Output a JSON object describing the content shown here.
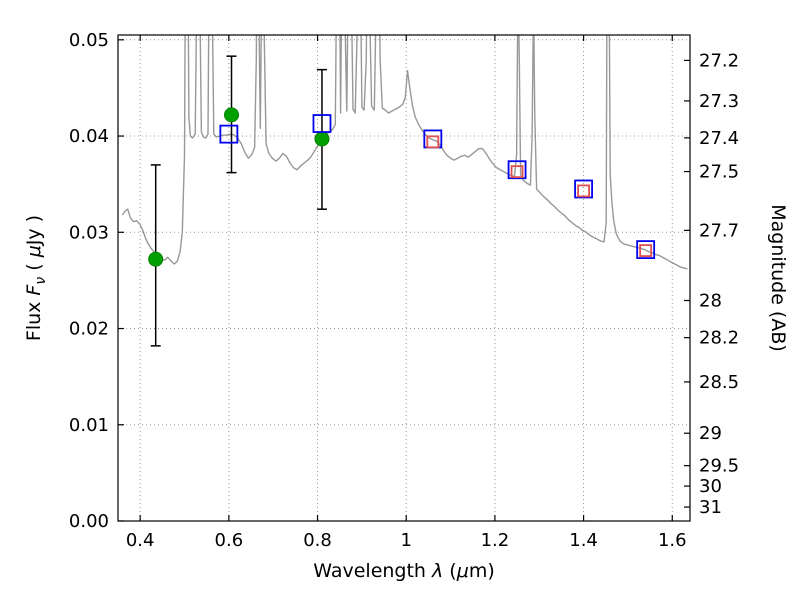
{
  "chart_data": {
    "type": "line",
    "title": "",
    "xlabel_parts": [
      {
        "t": "Wavelength  "
      },
      {
        "t": "λ",
        "i": true
      },
      {
        "t": " ("
      },
      {
        "t": "μ",
        "i": true
      },
      {
        "t": "m)"
      }
    ],
    "ylabel_left_parts": [
      {
        "t": "Flux  "
      },
      {
        "t": "F",
        "i": true
      },
      {
        "t": "ν",
        "i": true,
        "s": true
      },
      {
        "t": "  ( "
      },
      {
        "t": "μ",
        "i": true
      },
      {
        "t": "Jy )"
      }
    ],
    "ylabel_right": "Magnitude (AB)",
    "xlim": [
      0.35,
      1.64
    ],
    "ylim_flux": [
      0.0,
      0.0505
    ],
    "grid": {
      "show": true,
      "color": "#999999"
    },
    "x_ticks": [
      {
        "value": 0.4,
        "label": "0.4"
      },
      {
        "value": 0.6,
        "label": "0.6"
      },
      {
        "value": 0.8,
        "label": "0.8"
      },
      {
        "value": 1.0,
        "label": "1"
      },
      {
        "value": 1.2,
        "label": "1.2"
      },
      {
        "value": 1.4,
        "label": "1.4"
      },
      {
        "value": 1.6,
        "label": "1.6"
      }
    ],
    "y_ticks_left": [
      {
        "value": 0.0,
        "label": "0.00"
      },
      {
        "value": 0.01,
        "label": "0.01"
      },
      {
        "value": 0.02,
        "label": "0.02"
      },
      {
        "value": 0.03,
        "label": "0.03"
      },
      {
        "value": 0.04,
        "label": "0.04"
      },
      {
        "value": 0.05,
        "label": "0.05"
      }
    ],
    "y_ticks_right": [
      {
        "flux": 0.04786,
        "label": "27.2"
      },
      {
        "flux": 0.04365,
        "label": "27.3"
      },
      {
        "flux": 0.03981,
        "label": "27.4"
      },
      {
        "flux": 0.03631,
        "label": "27.5"
      },
      {
        "flux": 0.0302,
        "label": "27.7"
      },
      {
        "flux": 0.02291,
        "label": "28"
      },
      {
        "flux": 0.01905,
        "label": "28.2"
      },
      {
        "flux": 0.01445,
        "label": "28.5"
      },
      {
        "flux": 0.00912,
        "label": "29"
      },
      {
        "flux": 0.00575,
        "label": "29.5"
      },
      {
        "flux": 0.00363,
        "label": "30"
      },
      {
        "flux": 0.00145,
        "label": "31"
      }
    ],
    "spectrum": {
      "name": "model-spectrum",
      "color": "#989898",
      "linewidth": 1.4,
      "points": [
        [
          0.36,
          0.0318
        ],
        [
          0.366,
          0.0322
        ],
        [
          0.372,
          0.0324
        ],
        [
          0.378,
          0.0315
        ],
        [
          0.385,
          0.0311
        ],
        [
          0.392,
          0.0312
        ],
        [
          0.4,
          0.0308
        ],
        [
          0.406,
          0.0302
        ],
        [
          0.412,
          0.0294
        ],
        [
          0.418,
          0.0288
        ],
        [
          0.425,
          0.0283
        ],
        [
          0.432,
          0.0279
        ],
        [
          0.44,
          0.0275
        ],
        [
          0.448,
          0.0272
        ],
        [
          0.455,
          0.0271
        ],
        [
          0.462,
          0.0274
        ],
        [
          0.47,
          0.027
        ],
        [
          0.477,
          0.0267
        ],
        [
          0.484,
          0.027
        ],
        [
          0.49,
          0.028
        ],
        [
          0.495,
          0.03
        ],
        [
          0.5,
          0.038
        ],
        [
          0.503,
          0.065
        ],
        [
          0.505,
          0.072
        ],
        [
          0.507,
          0.065
        ],
        [
          0.51,
          0.042
        ],
        [
          0.513,
          0.04
        ],
        [
          0.518,
          0.0398
        ],
        [
          0.524,
          0.0402
        ],
        [
          0.528,
          0.056
        ],
        [
          0.531,
          0.072
        ],
        [
          0.534,
          0.056
        ],
        [
          0.538,
          0.0404
        ],
        [
          0.543,
          0.0399
        ],
        [
          0.548,
          0.0398
        ],
        [
          0.553,
          0.0402
        ],
        [
          0.556,
          0.06
        ],
        [
          0.559,
          0.072
        ],
        [
          0.562,
          0.056
        ],
        [
          0.566,
          0.0402
        ],
        [
          0.572,
          0.0399
        ],
        [
          0.58,
          0.04
        ],
        [
          0.588,
          0.0401
        ],
        [
          0.596,
          0.0401
        ],
        [
          0.604,
          0.0402
        ],
        [
          0.612,
          0.0401
        ],
        [
          0.62,
          0.0398
        ],
        [
          0.628,
          0.0392
        ],
        [
          0.636,
          0.0383
        ],
        [
          0.644,
          0.0377
        ],
        [
          0.652,
          0.0381
        ],
        [
          0.658,
          0.0388
        ],
        [
          0.662,
          0.048
        ],
        [
          0.665,
          0.072
        ],
        [
          0.668,
          0.052
        ],
        [
          0.671,
          0.0408
        ],
        [
          0.674,
          0.056
        ],
        [
          0.677,
          0.072
        ],
        [
          0.68,
          0.05
        ],
        [
          0.684,
          0.0392
        ],
        [
          0.69,
          0.0382
        ],
        [
          0.698,
          0.0377
        ],
        [
          0.706,
          0.0374
        ],
        [
          0.714,
          0.0377
        ],
        [
          0.722,
          0.0382
        ],
        [
          0.73,
          0.0379
        ],
        [
          0.738,
          0.0372
        ],
        [
          0.746,
          0.0367
        ],
        [
          0.754,
          0.0365
        ],
        [
          0.762,
          0.0369
        ],
        [
          0.77,
          0.0372
        ],
        [
          0.778,
          0.0375
        ],
        [
          0.786,
          0.0379
        ],
        [
          0.794,
          0.0385
        ],
        [
          0.802,
          0.0391
        ],
        [
          0.81,
          0.0396
        ],
        [
          0.818,
          0.0401
        ],
        [
          0.826,
          0.0404
        ],
        [
          0.834,
          0.0407
        ],
        [
          0.84,
          0.0412
        ],
        [
          0.843,
          0.056
        ],
        [
          0.846,
          0.072
        ],
        [
          0.849,
          0.06
        ],
        [
          0.852,
          0.0424
        ],
        [
          0.856,
          0.065
        ],
        [
          0.859,
          0.072
        ],
        [
          0.862,
          0.052
        ],
        [
          0.866,
          0.0426
        ],
        [
          0.87,
          0.06
        ],
        [
          0.873,
          0.072
        ],
        [
          0.876,
          0.056
        ],
        [
          0.88,
          0.0428
        ],
        [
          0.885,
          0.0424
        ],
        [
          0.89,
          0.052
        ],
        [
          0.893,
          0.072
        ],
        [
          0.896,
          0.06
        ],
        [
          0.9,
          0.043
        ],
        [
          0.905,
          0.0427
        ],
        [
          0.91,
          0.048
        ],
        [
          0.914,
          0.072
        ],
        [
          0.918,
          0.052
        ],
        [
          0.922,
          0.0431
        ],
        [
          0.928,
          0.0427
        ],
        [
          0.933,
          0.056
        ],
        [
          0.937,
          0.072
        ],
        [
          0.941,
          0.048
        ],
        [
          0.946,
          0.0429
        ],
        [
          0.953,
          0.0427
        ],
        [
          0.96,
          0.0424
        ],
        [
          0.968,
          0.0426
        ],
        [
          0.976,
          0.0428
        ],
        [
          0.984,
          0.043
        ],
        [
          0.992,
          0.0433
        ],
        [
          0.998,
          0.044
        ],
        [
          1.003,
          0.0468
        ],
        [
          1.008,
          0.045
        ],
        [
          1.014,
          0.0432
        ],
        [
          1.02,
          0.042
        ],
        [
          1.028,
          0.0412
        ],
        [
          1.036,
          0.0406
        ],
        [
          1.044,
          0.0401
        ],
        [
          1.052,
          0.0398
        ],
        [
          1.06,
          0.0396
        ],
        [
          1.068,
          0.0395
        ],
        [
          1.076,
          0.0391
        ],
        [
          1.084,
          0.0385
        ],
        [
          1.092,
          0.038
        ],
        [
          1.1,
          0.0377
        ],
        [
          1.108,
          0.0375
        ],
        [
          1.116,
          0.0377
        ],
        [
          1.124,
          0.0379
        ],
        [
          1.132,
          0.038
        ],
        [
          1.14,
          0.0378
        ],
        [
          1.148,
          0.0381
        ],
        [
          1.156,
          0.0384
        ],
        [
          1.164,
          0.0387
        ],
        [
          1.172,
          0.0387
        ],
        [
          1.18,
          0.0382
        ],
        [
          1.188,
          0.0376
        ],
        [
          1.196,
          0.0371
        ],
        [
          1.204,
          0.0367
        ],
        [
          1.212,
          0.0365
        ],
        [
          1.22,
          0.0363
        ],
        [
          1.228,
          0.0361
        ],
        [
          1.236,
          0.0359
        ],
        [
          1.244,
          0.0358
        ],
        [
          1.249,
          0.038
        ],
        [
          1.252,
          0.056
        ],
        [
          1.255,
          0.048
        ],
        [
          1.258,
          0.036
        ],
        [
          1.264,
          0.0354
        ],
        [
          1.272,
          0.0351
        ],
        [
          1.28,
          0.0349
        ],
        [
          1.284,
          0.04
        ],
        [
          1.287,
          0.054
        ],
        [
          1.29,
          0.042
        ],
        [
          1.294,
          0.0345
        ],
        [
          1.302,
          0.0341
        ],
        [
          1.31,
          0.0337
        ],
        [
          1.318,
          0.0334
        ],
        [
          1.326,
          0.033
        ],
        [
          1.334,
          0.0327
        ],
        [
          1.342,
          0.0323
        ],
        [
          1.35,
          0.032
        ],
        [
          1.358,
          0.0317
        ],
        [
          1.366,
          0.0313
        ],
        [
          1.374,
          0.031
        ],
        [
          1.382,
          0.0307
        ],
        [
          1.39,
          0.0305
        ],
        [
          1.398,
          0.0302
        ],
        [
          1.406,
          0.03
        ],
        [
          1.414,
          0.0297
        ],
        [
          1.422,
          0.0295
        ],
        [
          1.43,
          0.0293
        ],
        [
          1.438,
          0.0291
        ],
        [
          1.446,
          0.029
        ],
        [
          1.451,
          0.031
        ],
        [
          1.454,
          0.072
        ],
        [
          1.457,
          0.06
        ],
        [
          1.46,
          0.036
        ],
        [
          1.464,
          0.033
        ],
        [
          1.468,
          0.0312
        ],
        [
          1.474,
          0.0298
        ],
        [
          1.482,
          0.0291
        ],
        [
          1.49,
          0.0288
        ],
        [
          1.498,
          0.0287
        ],
        [
          1.506,
          0.0286
        ],
        [
          1.514,
          0.0285
        ],
        [
          1.522,
          0.0284
        ],
        [
          1.53,
          0.0283
        ],
        [
          1.538,
          0.0282
        ],
        [
          1.546,
          0.028
        ],
        [
          1.554,
          0.0279
        ],
        [
          1.562,
          0.0277
        ],
        [
          1.57,
          0.0276
        ],
        [
          1.578,
          0.0274
        ],
        [
          1.586,
          0.0272
        ],
        [
          1.594,
          0.027
        ],
        [
          1.602,
          0.0268
        ],
        [
          1.61,
          0.0266
        ],
        [
          1.618,
          0.0264
        ],
        [
          1.626,
          0.0263
        ],
        [
          1.634,
          0.0262
        ]
      ]
    },
    "observed_points": {
      "name": "observed-photometry-circles",
      "marker": "circle",
      "color": "#00a000",
      "edge_color": "#008000",
      "error_color": "#000000",
      "points": [
        {
          "x": 0.435,
          "flux": 0.0272,
          "err_plus": 0.0098,
          "err_minus": 0.009
        },
        {
          "x": 0.606,
          "flux": 0.0422,
          "err_plus": 0.0061,
          "err_minus": 0.006
        },
        {
          "x": 0.81,
          "flux": 0.0397,
          "err_plus": 0.0072,
          "err_minus": 0.0073
        }
      ]
    },
    "model_points": {
      "name": "model-photometry-squares",
      "marker": "open-square",
      "color": "#0000ee",
      "points": [
        {
          "x": 0.6,
          "flux": 0.0402
        },
        {
          "x": 0.81,
          "flux": 0.0413
        },
        {
          "x": 1.06,
          "flux": 0.0397
        },
        {
          "x": 1.25,
          "flux": 0.0365
        },
        {
          "x": 1.4,
          "flux": 0.0345
        },
        {
          "x": 1.54,
          "flux": 0.0282
        }
      ]
    },
    "observed_points_secondary": {
      "name": "observed-photometry-red-squares",
      "marker": "open-square-small",
      "color": "#e05050",
      "points": [
        {
          "x": 1.06,
          "flux": 0.0394
        },
        {
          "x": 1.25,
          "flux": 0.0363
        },
        {
          "x": 1.4,
          "flux": 0.0343
        },
        {
          "x": 1.54,
          "flux": 0.0281
        }
      ]
    }
  }
}
